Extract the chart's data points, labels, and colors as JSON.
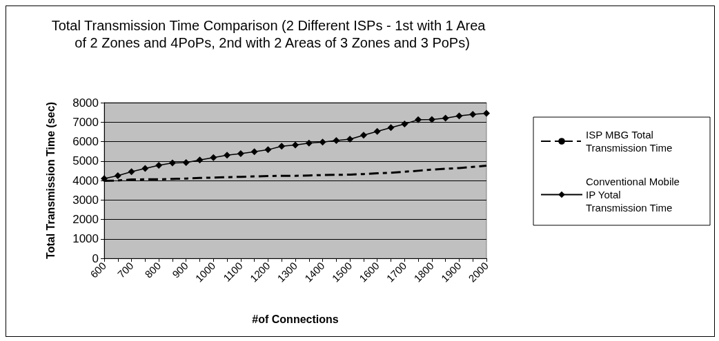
{
  "chart_data": {
    "type": "line",
    "title": "Total Transmission Time Comparison (2 Different ISPs - 1st with 1 Area  of 2 Zones and 4PoPs, 2nd with 2 Areas of 3 Zones and 3 PoPs)",
    "xlabel": "#of Connections",
    "ylabel": "Total Transmission Time (sec)",
    "categories": [
      "600",
      null,
      "700",
      null,
      "800",
      null,
      "900",
      null,
      "1000",
      null,
      "1100",
      null,
      "1200",
      null,
      "1300",
      null,
      "1400",
      null,
      "1500",
      null,
      "1600",
      null,
      "1700",
      null,
      "1800",
      null,
      "1900",
      null,
      "2000"
    ],
    "series": [
      {
        "name": "ISP MBG Total Transmission Time",
        "color": "#000000",
        "line_style": "dashed",
        "marker": "none",
        "values": [
          3980,
          4000,
          4050,
          4060,
          4060,
          4080,
          4100,
          4130,
          4150,
          4170,
          4190,
          4210,
          4230,
          4240,
          4240,
          4260,
          4280,
          4290,
          4300,
          4330,
          4370,
          4400,
          4450,
          4500,
          4560,
          4600,
          4640,
          4700,
          4760
        ]
      },
      {
        "name": "Conventional Mobile IP Yotal Transmission Time",
        "color": "#000000",
        "line_style": "solid",
        "marker": "diamond",
        "values": [
          4100,
          4250,
          4450,
          4620,
          4780,
          4900,
          4920,
          5050,
          5180,
          5300,
          5380,
          5480,
          5580,
          5760,
          5820,
          5920,
          5970,
          6050,
          6120,
          6330,
          6520,
          6720,
          6900,
          7120,
          7130,
          7200,
          7320,
          7400,
          7450
        ]
      }
    ],
    "ylim": [
      0,
      8000
    ],
    "yticks": [
      0,
      1000,
      2000,
      3000,
      4000,
      5000,
      6000,
      7000,
      8000
    ],
    "grid": "y",
    "legend": "right"
  }
}
